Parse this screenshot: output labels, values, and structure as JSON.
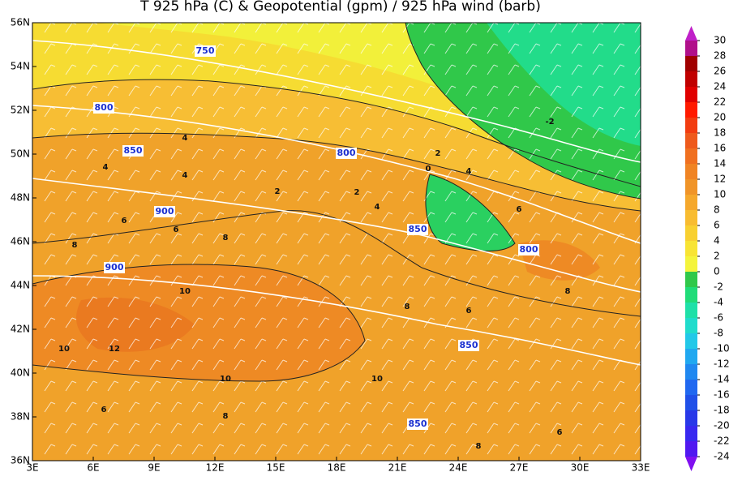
{
  "title": "T 925 hPa (C) & Geopotential (gpm) / 925 hPa wind (barb)",
  "map": {
    "lon_ticks": [
      {
        "value": 3,
        "label": "3E"
      },
      {
        "value": 6,
        "label": "6E"
      },
      {
        "value": 9,
        "label": "9E"
      },
      {
        "value": 12,
        "label": "12E"
      },
      {
        "value": 15,
        "label": "15E"
      },
      {
        "value": 18,
        "label": "18E"
      },
      {
        "value": 21,
        "label": "21E"
      },
      {
        "value": 24,
        "label": "24E"
      },
      {
        "value": 27,
        "label": "27E"
      },
      {
        "value": 30,
        "label": "30E"
      },
      {
        "value": 33,
        "label": "33E"
      }
    ],
    "lat_ticks": [
      {
        "value": 56,
        "label": "56N"
      },
      {
        "value": 54,
        "label": "54N"
      },
      {
        "value": 52,
        "label": "52N"
      },
      {
        "value": 50,
        "label": "50N"
      },
      {
        "value": 48,
        "label": "48N"
      },
      {
        "value": 46,
        "label": "46N"
      },
      {
        "value": 44,
        "label": "44N"
      },
      {
        "value": 42,
        "label": "42N"
      },
      {
        "value": 40,
        "label": "40N"
      },
      {
        "value": 38,
        "label": "38N"
      },
      {
        "value": 36,
        "label": "36N"
      }
    ],
    "lonlim": [
      3,
      33
    ],
    "latlim": [
      36,
      56
    ],
    "geopotential_labels": [
      "750",
      "800",
      "850",
      "800",
      "900",
      "900",
      "850",
      "800",
      "850",
      "850"
    ],
    "temperature_labels": [
      "-2",
      "2",
      "4",
      "4",
      "4",
      "2",
      "2",
      "4",
      "0",
      "4",
      "6",
      "6",
      "6",
      "8",
      "8",
      "10",
      "12",
      "10",
      "10",
      "8",
      "6",
      "8",
      "10",
      "8",
      "6",
      "6",
      "8"
    ]
  },
  "colorbar": {
    "levels": [
      30,
      28,
      26,
      24,
      22,
      20,
      18,
      16,
      14,
      12,
      10,
      8,
      6,
      4,
      2,
      0,
      -2,
      -4,
      -6,
      -8,
      -10,
      -12,
      -14,
      -16,
      -18,
      -20,
      -22,
      -24
    ],
    "colors": [
      "#c020c8",
      "#b0108a",
      "#a00000",
      "#c00000",
      "#e00000",
      "#ff1a00",
      "#f23c10",
      "#ee5a1c",
      "#f07020",
      "#f08424",
      "#f09428",
      "#f5a82c",
      "#f8bc30",
      "#f8d030",
      "#f8e434",
      "#f4f43c",
      "#30c84a",
      "#20dc78",
      "#1ee0a8",
      "#20dccc",
      "#22c8e8",
      "#20a8f0",
      "#2088f0",
      "#2068f0",
      "#2050e8",
      "#2838e8",
      "#3828f0",
      "#5018f0",
      "#8010f0"
    ]
  }
}
